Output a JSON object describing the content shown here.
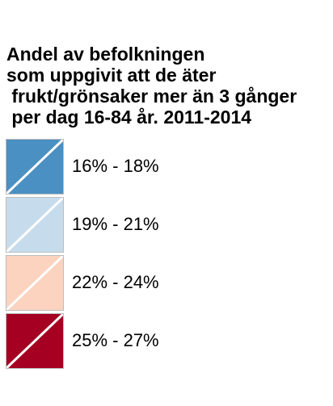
{
  "legend": {
    "title": "Andel av befolkningen\nsom uppgivit att de äter\n frukt/grönsaker mer än 3 gånger\n per dag 16-84 år. 2011-2014",
    "items": [
      {
        "label": "16% - 18%",
        "color": "#4a90c2"
      },
      {
        "label": "19% - 21%",
        "color": "#c6dcec"
      },
      {
        "label": "22% - 24%",
        "color": "#fbd3bf"
      },
      {
        "label": "25% - 27%",
        "color": "#a50022"
      }
    ]
  }
}
